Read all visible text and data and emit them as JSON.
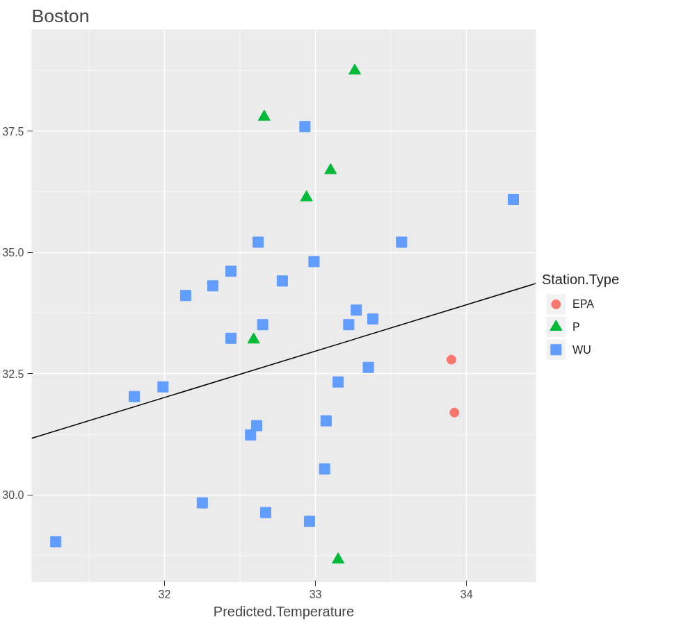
{
  "chart_data": {
    "type": "scatter",
    "title": "Boston",
    "xlabel": "Predicted.Temperature",
    "legend_title": "Station.Type",
    "xlim": [
      31.12,
      34.46
    ],
    "ylim": [
      28.21,
      39.59
    ],
    "xticks": [
      32,
      33,
      34
    ],
    "yticks": [
      {
        "value": 30,
        "label": "30.0"
      },
      32.5,
      {
        "value": 35,
        "label": "35.0"
      },
      37.5
    ],
    "grid": true,
    "legend": "right",
    "series": [
      {
        "name": "EPA",
        "color": "#f8766d",
        "marker": "circle",
        "x": [
          33.9,
          33.92
        ],
        "values": [
          32.79,
          31.7
        ]
      },
      {
        "name": "P",
        "color": "#00ba38",
        "marker": "triangle",
        "x": [
          33.26,
          32.66,
          33.1,
          32.94,
          32.59,
          33.15
        ],
        "values": [
          38.74,
          37.79,
          36.69,
          36.13,
          33.2,
          28.67
        ]
      },
      {
        "name": "WU",
        "color": "#619cff",
        "marker": "square",
        "x": [
          32.93,
          34.31,
          33.57,
          32.62,
          32.99,
          32.44,
          32.78,
          32.32,
          32.14,
          32.65,
          33.27,
          33.38,
          32.44,
          33.22,
          33.35,
          33.15,
          31.99,
          31.8,
          32.61,
          33.07,
          32.57,
          33.06,
          32.25,
          32.67,
          32.96,
          31.28
        ],
        "values": [
          37.59,
          36.09,
          35.21,
          35.21,
          34.81,
          34.61,
          34.41,
          34.31,
          34.11,
          33.51,
          33.81,
          33.63,
          33.23,
          33.51,
          32.63,
          32.33,
          32.23,
          32.03,
          31.43,
          31.53,
          31.24,
          30.54,
          29.84,
          29.64,
          29.46,
          29.04
        ]
      },
      {
        "type": "line",
        "color": "#000000",
        "x": [
          31.12,
          34.46
        ],
        "values": [
          31.17,
          34.36
        ]
      }
    ]
  }
}
